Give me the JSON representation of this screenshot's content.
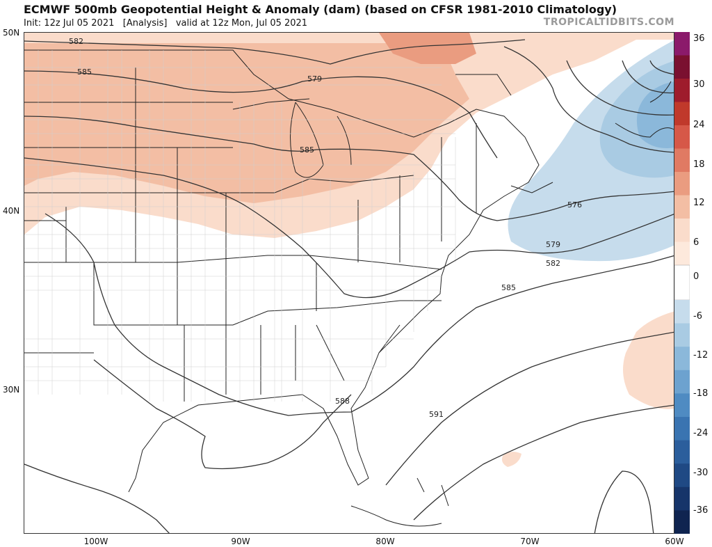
{
  "header": {
    "title": "ECMWF 500mb Geopotential Height & Anomaly (dam) (based on CFSR 1981-2010 Climatology)",
    "subtitle": "Init: 12z Jul 05 2021   [Analysis]   valid at 12z Mon, Jul 05 2021",
    "brand": "TROPICALTIDBITS.COM"
  },
  "axes": {
    "lat_labels": [
      "50N",
      "40N",
      "30N"
    ],
    "lon_labels": [
      "100W",
      "90W",
      "80W",
      "70W",
      "60W"
    ]
  },
  "contour_labels": [
    "582",
    "585",
    "579",
    "585",
    "576",
    "579",
    "582",
    "585",
    "588",
    "591"
  ],
  "colorbar": {
    "labels": [
      "36",
      "30",
      "24",
      "18",
      "12",
      "6",
      "0",
      "-6",
      "-12",
      "-18",
      "-24",
      "-30",
      "-36"
    ],
    "positive_colors": [
      "#8b1a6b",
      "#7a1030",
      "#9e1c2c",
      "#c0392b",
      "#d65848",
      "#e07a63",
      "#ea9c80",
      "#f3bea4",
      "#fadccb",
      "#fde9dc"
    ],
    "negative_colors": [
      "#c6dcec",
      "#a9cbe3",
      "#8bb8da",
      "#6da2cf",
      "#4f8bc2",
      "#3a74b1",
      "#2b5e9c",
      "#1f4984",
      "#16356a",
      "#0f2450"
    ]
  },
  "colors": {
    "positive_anomaly_light": "#fadccb",
    "positive_anomaly_mid": "#f3bea4",
    "positive_anomaly_strong": "#ea9c80",
    "negative_anomaly_light": "#c6dcec",
    "negative_anomaly_mid": "#8bb8da"
  }
}
